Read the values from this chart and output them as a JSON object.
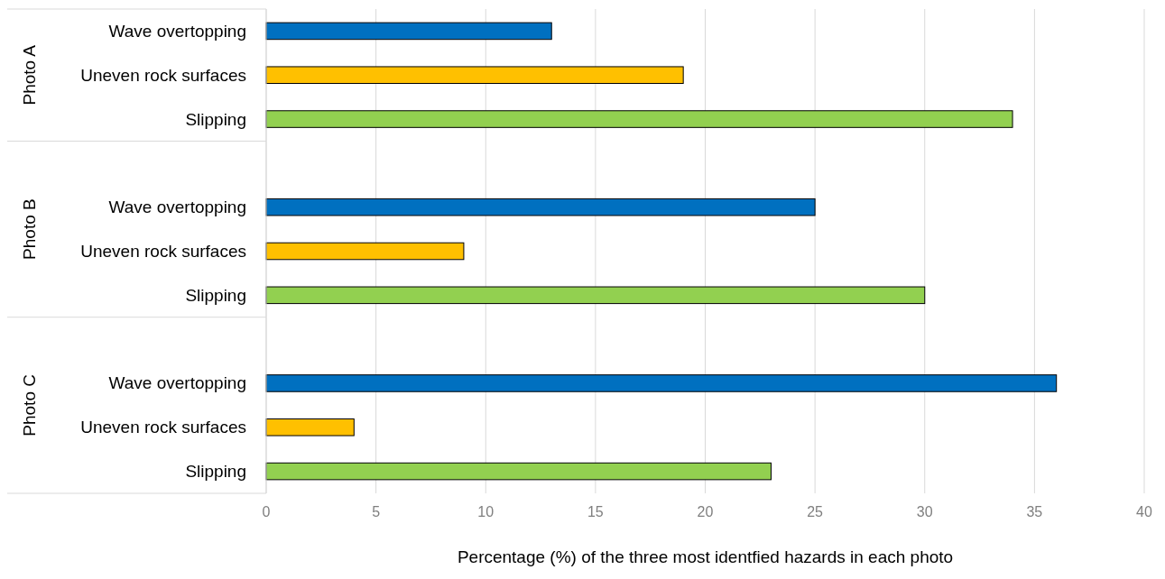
{
  "chart_data": {
    "type": "bar",
    "orientation": "horizontal",
    "xlabel": "Percentage (%) of the three most identfied hazards in each photo",
    "categories": [
      "Wave overtopping",
      "Uneven rock surfaces",
      "Slipping",
      "Wave overtopping",
      "Uneven rock surfaces",
      "Slipping",
      "Wave overtopping",
      "Uneven rock surfaces",
      "Slipping"
    ],
    "values": [
      13,
      19,
      34,
      25,
      9,
      30,
      36,
      4,
      23
    ],
    "colors": [
      "#0070c0",
      "#ffc000",
      "#92d050",
      "#0070c0",
      "#ffc000",
      "#92d050",
      "#0070c0",
      "#ffc000",
      "#92d050"
    ],
    "annotations": [
      "Photo A",
      "Photo B",
      "Photo C"
    ],
    "xlim": [
      0,
      40
    ],
    "xticks": [
      0,
      5,
      10,
      15,
      20,
      25,
      30,
      35,
      40
    ],
    "grid": "x"
  }
}
